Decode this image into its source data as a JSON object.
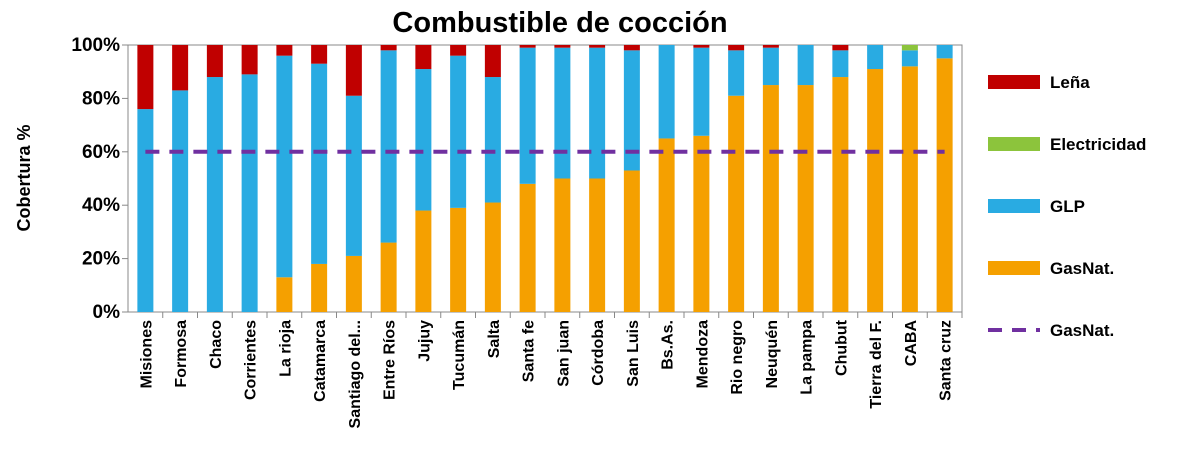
{
  "chart_data": {
    "type": "bar",
    "stacked": true,
    "title": "Combustible de cocción",
    "y_label": "Cobertura %",
    "categories": [
      "Misiones",
      "Formosa",
      "Chaco",
      "Corrientes",
      "La rioja",
      "Catamarca",
      "Santiago del...",
      "Entre Ríos",
      "Jujuy",
      "Tucumán",
      "Salta",
      "Santa fe",
      "San juan",
      "Córdoba",
      "San Luis",
      "Bs.As.",
      "Mendoza",
      "Rio negro",
      "Neuquén",
      "La pampa",
      "Chubut",
      "Tierra del F.",
      "CABA",
      "Santa cruz"
    ],
    "series": [
      {
        "name": "GasNat.",
        "color": "#f5a000",
        "values": [
          0,
          0,
          0,
          0,
          13,
          18,
          21,
          26,
          38,
          39,
          41,
          48,
          50,
          50,
          53,
          65,
          66,
          81,
          85,
          85,
          88,
          91,
          92,
          95
        ]
      },
      {
        "name": "GLP",
        "color": "#29abe2",
        "values": [
          76,
          83,
          88,
          89,
          83,
          75,
          60,
          72,
          53,
          57,
          47,
          51,
          49,
          49,
          45,
          35,
          33,
          17,
          14,
          15,
          10,
          9,
          6,
          5
        ]
      },
      {
        "name": "Electricidad",
        "color": "#8cc43c",
        "values": [
          0,
          0,
          0,
          0,
          0,
          0,
          0,
          0,
          0,
          0,
          0,
          0,
          0,
          0,
          0,
          0,
          0,
          0,
          0,
          0,
          0,
          0,
          2,
          0
        ]
      },
      {
        "name": "Leña",
        "color": "#c00000",
        "values": [
          24,
          17,
          12,
          11,
          4,
          7,
          19,
          2,
          9,
          4,
          12,
          1,
          1,
          1,
          2,
          0,
          1,
          2,
          1,
          0,
          2,
          0,
          0,
          0
        ]
      },
      {
        "name": "GasNat.",
        "type": "line",
        "dashed": true,
        "color": "#7030a0",
        "values": [
          60,
          60,
          60,
          60,
          60,
          60,
          60,
          60,
          60,
          60,
          60,
          60,
          60,
          60,
          60,
          60,
          60,
          60,
          60,
          60,
          60,
          60,
          60,
          60
        ]
      }
    ],
    "ylim": [
      0,
      100
    ],
    "yticks": [
      {
        "value": 0,
        "label": "0%"
      },
      {
        "value": 20,
        "label": "20%"
      },
      {
        "value": 40,
        "label": "40%"
      },
      {
        "value": 60,
        "label": "60%"
      },
      {
        "value": 80,
        "label": "80%"
      },
      {
        "value": 100,
        "label": "100%"
      }
    ],
    "legend": "right"
  }
}
